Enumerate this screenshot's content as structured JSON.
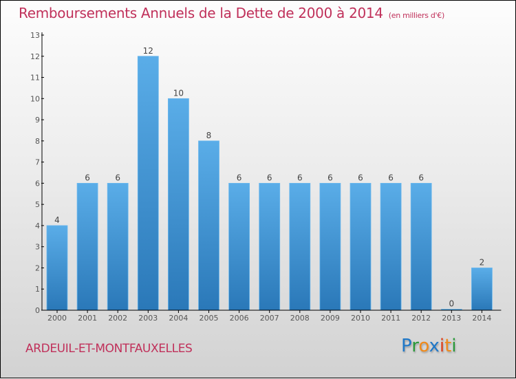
{
  "title": {
    "main": "Remboursements Annuels de la Dette de 2000 à 2014",
    "unit": "(en milliers d'€)"
  },
  "city": "ARDEUIL-ET-MONTFAUXELLES",
  "logo": {
    "letters": [
      {
        "ch": "P",
        "color": "#1f78c8"
      },
      {
        "ch": "r",
        "color": "#2a9a3a"
      },
      {
        "ch": "o",
        "color": "#f08a1a"
      },
      {
        "ch": "x",
        "color": "#1f78c8"
      },
      {
        "ch": "i",
        "color": "#e0401a"
      },
      {
        "ch": "t",
        "color": "#f08a1a"
      },
      {
        "ch": "i",
        "color": "#2a9a3a"
      }
    ]
  },
  "colors": {
    "title": "#c0305a",
    "bar_top": "#5aade8",
    "bar_bottom": "#2a78b8"
  },
  "chart_data": {
    "type": "bar",
    "title": "Remboursements Annuels de la Dette de 2000 à 2014 (en milliers d'€)",
    "xlabel": "",
    "ylabel": "",
    "categories": [
      "2000",
      "2001",
      "2002",
      "2003",
      "2004",
      "2005",
      "2006",
      "2007",
      "2008",
      "2009",
      "2010",
      "2011",
      "2012",
      "2013",
      "2014"
    ],
    "values": [
      4,
      6,
      6,
      12,
      10,
      8,
      6,
      6,
      6,
      6,
      6,
      6,
      6,
      0,
      2
    ],
    "ylim": [
      0,
      13
    ],
    "yticks": [
      0,
      1,
      2,
      3,
      4,
      5,
      6,
      7,
      8,
      9,
      10,
      11,
      12,
      13
    ],
    "grid": false,
    "data_labels": true
  }
}
